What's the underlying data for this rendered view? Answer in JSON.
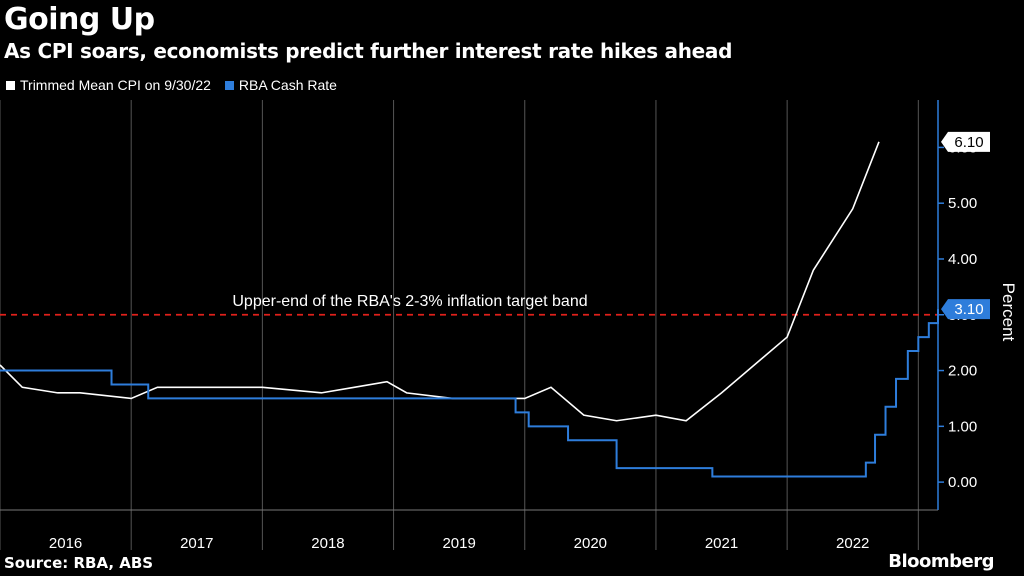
{
  "header": {
    "title": "Going Up",
    "subtitle": "As CPI soars, economists predict further interest rate hikes ahead"
  },
  "legend": [
    {
      "label": "Trimmed Mean CPI on 9/30/22",
      "color": "#ffffff"
    },
    {
      "label": "RBA Cash Rate",
      "color": "#2e7ddb"
    }
  ],
  "footer": {
    "source": "Source: RBA, ABS",
    "brand": "Bloomberg"
  },
  "chart_data": {
    "type": "line",
    "title": "Going Up",
    "subtitle": "As CPI soars, economists predict further interest rate hikes ahead",
    "xlabel": "",
    "ylabel": "Percent",
    "xlim": [
      2015.5,
      2022.65
    ],
    "ylim": [
      -0.5,
      6.85
    ],
    "yticks": [
      0.0,
      1.0,
      2.0,
      3.0,
      4.0,
      5.0,
      6.0
    ],
    "ytick_labels": [
      "0.00",
      "1.00",
      "2.00",
      "3.00",
      "4.00",
      "5.00",
      "6.00"
    ],
    "xtick_labels": [
      "2016",
      "2017",
      "2018",
      "2019",
      "2020",
      "2021",
      "2022"
    ],
    "annotation": {
      "text": "Upper-end of the RBA's 2-3% inflation target band",
      "value": 3.0
    },
    "end_labels": [
      {
        "series": "Trimmed Mean CPI on 9/30/22",
        "text": "6.10",
        "value": 6.1
      },
      {
        "series": "RBA Cash Rate",
        "text": "3.10",
        "value": 3.1
      }
    ],
    "series": [
      {
        "name": "Trimmed Mean CPI on 9/30/22",
        "color": "#ffffff",
        "step": false,
        "x": [
          2015.5,
          2015.67,
          2015.94,
          2016.11,
          2016.5,
          2016.7,
          2017.5,
          2017.95,
          2018.2,
          2018.45,
          2018.6,
          2018.95,
          2019.5,
          2019.7,
          2019.95,
          2020.2,
          2020.5,
          2020.73,
          2021.0,
          2021.5,
          2021.7,
          2022.0,
          2022.2
        ],
        "y": [
          2.1,
          1.7,
          1.6,
          1.6,
          1.5,
          1.7,
          1.7,
          1.6,
          1.7,
          1.8,
          1.6,
          1.5,
          1.5,
          1.7,
          1.2,
          1.1,
          1.2,
          1.1,
          1.6,
          2.6,
          3.8,
          4.9,
          6.1
        ]
      },
      {
        "name": "RBA Cash Rate",
        "color": "#2e7ddb",
        "step": true,
        "x": [
          2015.5,
          2016.35,
          2016.63,
          2018.5,
          2019.43,
          2019.53,
          2019.83,
          2020.2,
          2020.93,
          2022.0,
          2022.1,
          2022.17,
          2022.25,
          2022.33,
          2022.42,
          2022.5,
          2022.58
        ],
        "y": [
          2.0,
          1.75,
          1.5,
          1.5,
          1.25,
          1.0,
          0.75,
          0.25,
          0.1,
          0.1,
          0.35,
          0.85,
          1.35,
          1.85,
          2.35,
          2.6,
          2.85
        ]
      }
    ],
    "cash_rate_end": {
      "x": 2022.65,
      "y": 3.1
    }
  }
}
